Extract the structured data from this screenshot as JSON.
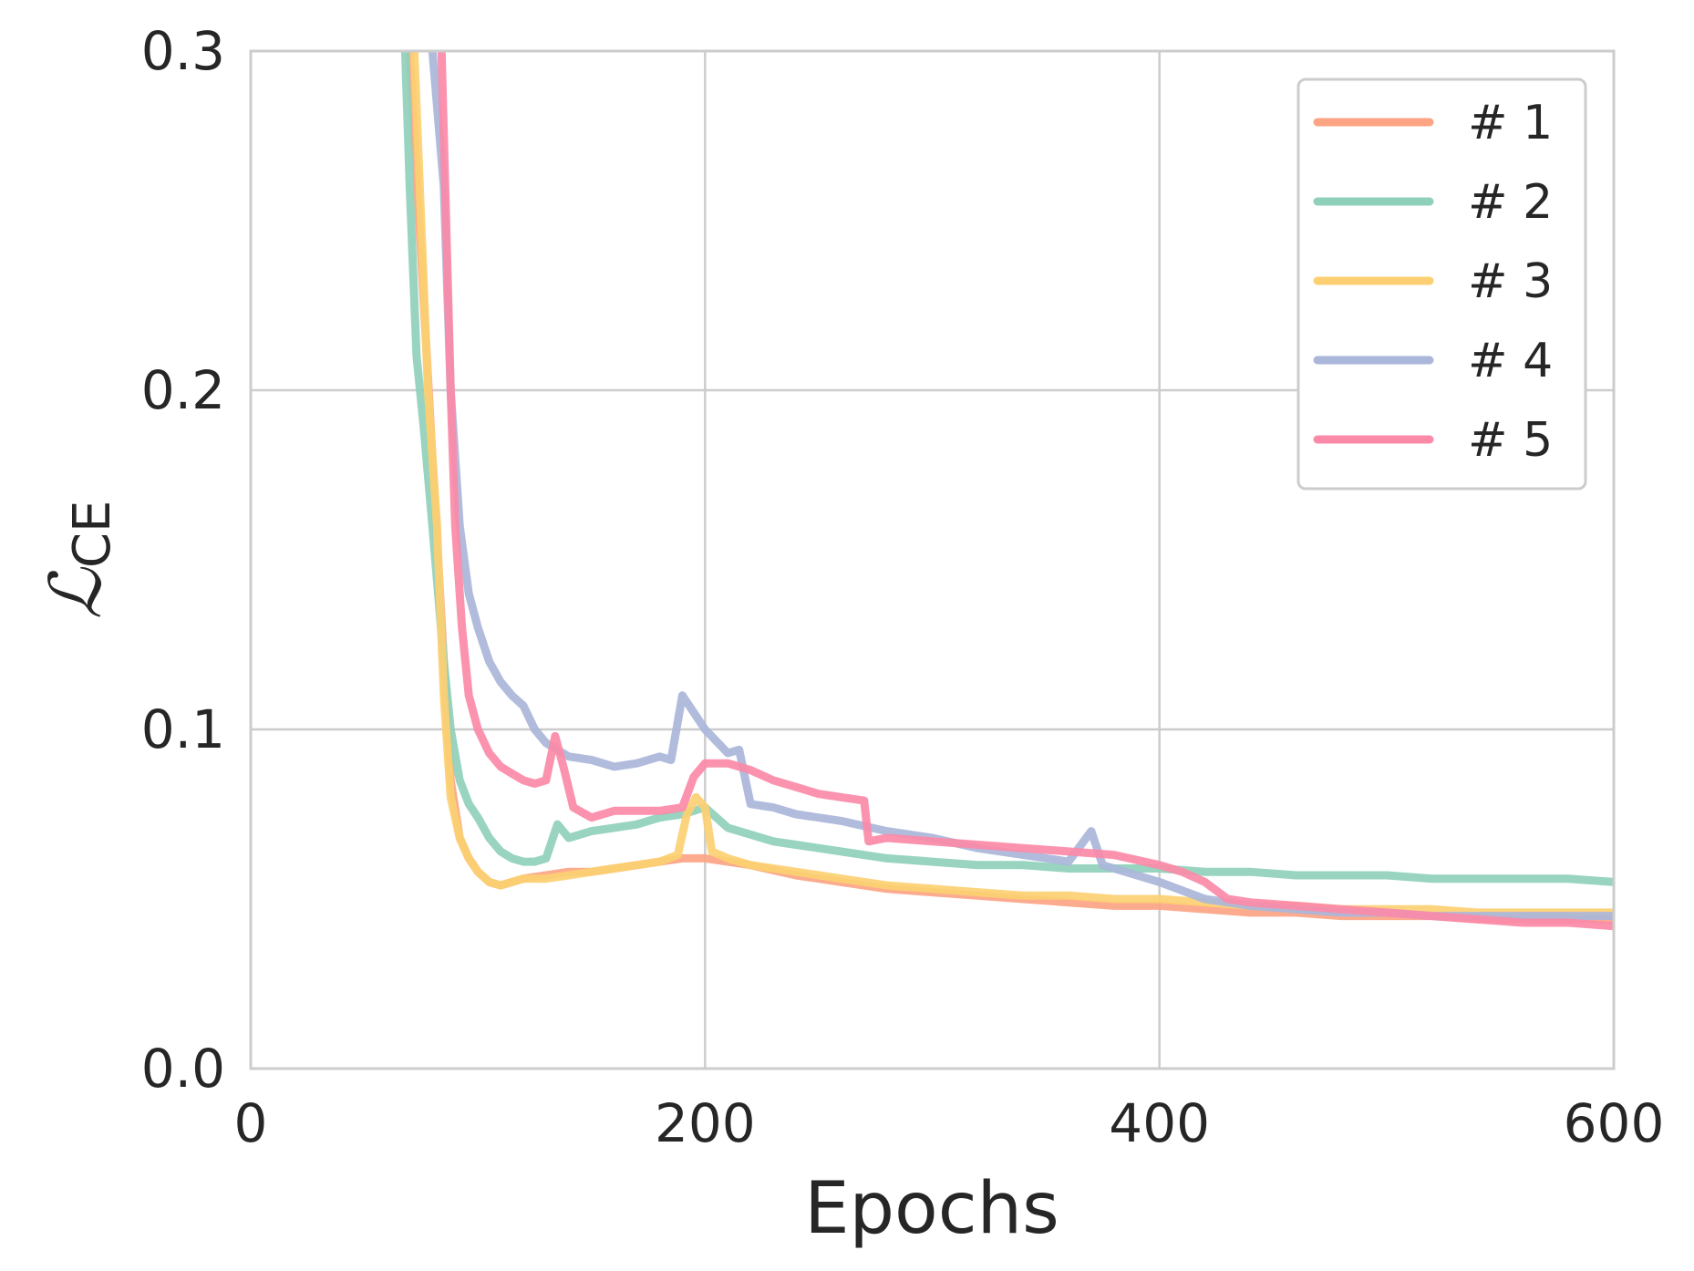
{
  "chart_data": {
    "type": "line",
    "xlabel": "Epochs",
    "ylabel": "ℒ",
    "ylabel_subscript": "CE",
    "xlim": [
      0,
      600
    ],
    "ylim": [
      0.0,
      0.3
    ],
    "xticks": [
      0,
      200,
      400,
      600
    ],
    "xtick_labels": [
      "0",
      "200",
      "400",
      "600"
    ],
    "yticks": [
      0.0,
      0.1,
      0.2,
      0.3
    ],
    "ytick_labels": [
      "0.0",
      "0.1",
      "0.2",
      "0.3"
    ],
    "grid": true,
    "legend_position": "top-right",
    "series": [
      {
        "name": "# 1",
        "color": "#fca484",
        "points": [
          [
            70,
            0.3
          ],
          [
            75,
            0.24
          ],
          [
            80,
            0.18
          ],
          [
            85,
            0.12
          ],
          [
            88,
            0.085
          ],
          [
            92,
            0.068
          ],
          [
            96,
            0.062
          ],
          [
            100,
            0.058
          ],
          [
            105,
            0.055
          ],
          [
            110,
            0.054
          ],
          [
            120,
            0.056
          ],
          [
            130,
            0.057
          ],
          [
            140,
            0.058
          ],
          [
            150,
            0.058
          ],
          [
            160,
            0.059
          ],
          [
            170,
            0.06
          ],
          [
            180,
            0.061
          ],
          [
            190,
            0.062
          ],
          [
            200,
            0.062
          ],
          [
            210,
            0.061
          ],
          [
            220,
            0.06
          ],
          [
            240,
            0.057
          ],
          [
            260,
            0.055
          ],
          [
            280,
            0.053
          ],
          [
            300,
            0.052
          ],
          [
            320,
            0.051
          ],
          [
            340,
            0.05
          ],
          [
            360,
            0.049
          ],
          [
            380,
            0.048
          ],
          [
            400,
            0.048
          ],
          [
            420,
            0.047
          ],
          [
            440,
            0.046
          ],
          [
            460,
            0.046
          ],
          [
            480,
            0.045
          ],
          [
            500,
            0.045
          ],
          [
            520,
            0.045
          ],
          [
            540,
            0.044
          ],
          [
            560,
            0.044
          ],
          [
            580,
            0.044
          ],
          [
            600,
            0.044
          ]
        ]
      },
      {
        "name": "# 2",
        "color": "#8fd0bb",
        "points": [
          [
            68,
            0.3
          ],
          [
            70,
            0.26
          ],
          [
            73,
            0.21
          ],
          [
            76,
            0.19
          ],
          [
            80,
            0.16
          ],
          [
            85,
            0.12
          ],
          [
            88,
            0.1
          ],
          [
            92,
            0.085
          ],
          [
            96,
            0.078
          ],
          [
            100,
            0.074
          ],
          [
            105,
            0.068
          ],
          [
            110,
            0.064
          ],
          [
            115,
            0.062
          ],
          [
            120,
            0.061
          ],
          [
            125,
            0.061
          ],
          [
            130,
            0.062
          ],
          [
            135,
            0.072
          ],
          [
            140,
            0.068
          ],
          [
            150,
            0.07
          ],
          [
            160,
            0.071
          ],
          [
            170,
            0.072
          ],
          [
            180,
            0.074
          ],
          [
            190,
            0.075
          ],
          [
            200,
            0.077
          ],
          [
            210,
            0.071
          ],
          [
            220,
            0.069
          ],
          [
            230,
            0.067
          ],
          [
            240,
            0.066
          ],
          [
            260,
            0.064
          ],
          [
            280,
            0.062
          ],
          [
            300,
            0.061
          ],
          [
            320,
            0.06
          ],
          [
            340,
            0.06
          ],
          [
            360,
            0.059
          ],
          [
            380,
            0.059
          ],
          [
            400,
            0.059
          ],
          [
            420,
            0.058
          ],
          [
            440,
            0.058
          ],
          [
            460,
            0.057
          ],
          [
            480,
            0.057
          ],
          [
            500,
            0.057
          ],
          [
            520,
            0.056
          ],
          [
            540,
            0.056
          ],
          [
            560,
            0.056
          ],
          [
            580,
            0.056
          ],
          [
            600,
            0.055
          ]
        ]
      },
      {
        "name": "# 3",
        "color": "#fcd072",
        "points": [
          [
            72,
            0.3
          ],
          [
            75,
            0.25
          ],
          [
            78,
            0.2
          ],
          [
            82,
            0.16
          ],
          [
            85,
            0.11
          ],
          [
            88,
            0.08
          ],
          [
            92,
            0.068
          ],
          [
            96,
            0.062
          ],
          [
            100,
            0.058
          ],
          [
            105,
            0.055
          ],
          [
            110,
            0.054
          ],
          [
            120,
            0.056
          ],
          [
            130,
            0.056
          ],
          [
            140,
            0.057
          ],
          [
            150,
            0.058
          ],
          [
            160,
            0.059
          ],
          [
            170,
            0.06
          ],
          [
            180,
            0.061
          ],
          [
            188,
            0.063
          ],
          [
            192,
            0.075
          ],
          [
            196,
            0.08
          ],
          [
            200,
            0.077
          ],
          [
            203,
            0.064
          ],
          [
            210,
            0.062
          ],
          [
            220,
            0.06
          ],
          [
            240,
            0.058
          ],
          [
            260,
            0.056
          ],
          [
            280,
            0.054
          ],
          [
            300,
            0.053
          ],
          [
            320,
            0.052
          ],
          [
            340,
            0.051
          ],
          [
            360,
            0.051
          ],
          [
            380,
            0.05
          ],
          [
            400,
            0.05
          ],
          [
            420,
            0.049
          ],
          [
            440,
            0.048
          ],
          [
            460,
            0.048
          ],
          [
            480,
            0.047
          ],
          [
            500,
            0.047
          ],
          [
            520,
            0.047
          ],
          [
            540,
            0.046
          ],
          [
            560,
            0.046
          ],
          [
            580,
            0.046
          ],
          [
            600,
            0.046
          ]
        ]
      },
      {
        "name": "# 4",
        "color": "#aab6da",
        "points": [
          [
            80,
            0.3
          ],
          [
            85,
            0.26
          ],
          [
            88,
            0.2
          ],
          [
            92,
            0.16
          ],
          [
            96,
            0.14
          ],
          [
            100,
            0.13
          ],
          [
            105,
            0.12
          ],
          [
            110,
            0.114
          ],
          [
            115,
            0.11
          ],
          [
            120,
            0.107
          ],
          [
            125,
            0.1
          ],
          [
            130,
            0.096
          ],
          [
            140,
            0.092
          ],
          [
            150,
            0.091
          ],
          [
            160,
            0.089
          ],
          [
            170,
            0.09
          ],
          [
            180,
            0.092
          ],
          [
            185,
            0.091
          ],
          [
            190,
            0.11
          ],
          [
            195,
            0.105
          ],
          [
            200,
            0.1
          ],
          [
            210,
            0.093
          ],
          [
            215,
            0.094
          ],
          [
            220,
            0.078
          ],
          [
            230,
            0.077
          ],
          [
            240,
            0.075
          ],
          [
            260,
            0.073
          ],
          [
            280,
            0.07
          ],
          [
            300,
            0.068
          ],
          [
            320,
            0.065
          ],
          [
            340,
            0.063
          ],
          [
            360,
            0.061
          ],
          [
            370,
            0.07
          ],
          [
            375,
            0.06
          ],
          [
            380,
            0.059
          ],
          [
            400,
            0.055
          ],
          [
            420,
            0.05
          ],
          [
            440,
            0.048
          ],
          [
            460,
            0.047
          ],
          [
            480,
            0.046
          ],
          [
            500,
            0.046
          ],
          [
            520,
            0.045
          ],
          [
            540,
            0.045
          ],
          [
            560,
            0.045
          ],
          [
            580,
            0.045
          ],
          [
            600,
            0.045
          ]
        ]
      },
      {
        "name": "# 5",
        "color": "#fb8aa8",
        "points": [
          [
            84,
            0.3
          ],
          [
            86,
            0.25
          ],
          [
            88,
            0.2
          ],
          [
            90,
            0.16
          ],
          [
            93,
            0.13
          ],
          [
            96,
            0.11
          ],
          [
            100,
            0.1
          ],
          [
            105,
            0.093
          ],
          [
            110,
            0.089
          ],
          [
            115,
            0.087
          ],
          [
            120,
            0.085
          ],
          [
            125,
            0.084
          ],
          [
            130,
            0.085
          ],
          [
            134,
            0.098
          ],
          [
            138,
            0.088
          ],
          [
            142,
            0.077
          ],
          [
            150,
            0.074
          ],
          [
            160,
            0.076
          ],
          [
            170,
            0.076
          ],
          [
            180,
            0.076
          ],
          [
            190,
            0.077
          ],
          [
            195,
            0.086
          ],
          [
            200,
            0.09
          ],
          [
            210,
            0.09
          ],
          [
            220,
            0.088
          ],
          [
            230,
            0.085
          ],
          [
            240,
            0.083
          ],
          [
            250,
            0.081
          ],
          [
            260,
            0.08
          ],
          [
            270,
            0.079
          ],
          [
            272,
            0.067
          ],
          [
            280,
            0.068
          ],
          [
            300,
            0.067
          ],
          [
            320,
            0.066
          ],
          [
            340,
            0.065
          ],
          [
            360,
            0.064
          ],
          [
            380,
            0.063
          ],
          [
            400,
            0.06
          ],
          [
            410,
            0.058
          ],
          [
            420,
            0.055
          ],
          [
            430,
            0.05
          ],
          [
            440,
            0.049
          ],
          [
            460,
            0.048
          ],
          [
            480,
            0.047
          ],
          [
            500,
            0.046
          ],
          [
            520,
            0.045
          ],
          [
            540,
            0.044
          ],
          [
            560,
            0.043
          ],
          [
            580,
            0.043
          ],
          [
            600,
            0.042
          ]
        ]
      }
    ]
  }
}
